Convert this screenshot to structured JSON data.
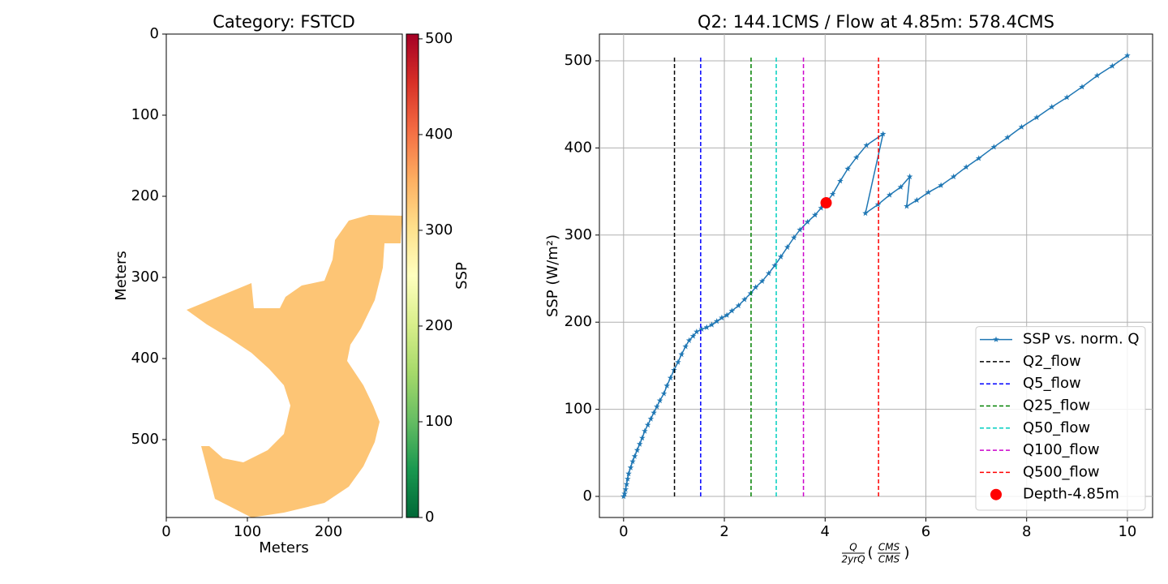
{
  "chart_data": [
    {
      "type": "heatmap",
      "title": "Category: FSTCD",
      "xlabel": "Meters",
      "ylabel": "Meters",
      "xlim": [
        0,
        291
      ],
      "ylim": [
        0,
        596
      ],
      "y_inverted": true,
      "xticks": [
        0,
        100,
        200
      ],
      "yticks": [
        0,
        100,
        200,
        300,
        400,
        500
      ],
      "cmap": "RdYlGn_r",
      "fill_value": 330,
      "colorbar": {
        "label": "SSP",
        "lim": [
          0,
          505
        ],
        "ticks": [
          0,
          100,
          200,
          300,
          400,
          500
        ]
      }
    },
    {
      "type": "line",
      "title": "Q2: 144.1CMS / Flow at 4.85m: 578.4CMS",
      "xlabel": {
        "numerator": "Q",
        "denominator": "2yrQ",
        "unit_numerator": "CMS",
        "unit_denominator": "CMS"
      },
      "ylabel": "SSP (W/m²)",
      "xlim": [
        -0.48,
        10.5
      ],
      "ylim": [
        -24.2,
        530.7
      ],
      "xticks": [
        0,
        2,
        4,
        6,
        8,
        10
      ],
      "yticks": [
        0,
        100,
        200,
        300,
        400,
        500
      ],
      "grid": true,
      "legend": "lower right",
      "x": [
        0,
        0.02,
        0.04,
        0.06,
        0.08,
        0.1,
        0.14,
        0.18,
        0.22,
        0.27,
        0.32,
        0.37,
        0.42,
        0.48,
        0.54,
        0.6,
        0.66,
        0.72,
        0.8,
        0.86,
        0.93,
        1.0,
        1.08,
        1.15,
        1.23,
        1.3,
        1.38,
        1.45,
        1.55,
        1.65,
        1.75,
        1.85,
        1.95,
        2.05,
        2.15,
        2.28,
        2.4,
        2.52,
        2.62,
        2.75,
        2.88,
        3.0,
        3.12,
        3.25,
        3.38,
        3.5,
        3.65,
        3.8,
        3.92,
        4.02,
        4.15,
        4.3,
        4.45,
        4.62,
        4.82,
        5.15,
        4.8,
        5.05,
        5.28,
        5.5,
        5.68,
        5.62,
        5.82,
        6.05,
        6.3,
        6.55,
        6.8,
        7.05,
        7.35,
        7.62,
        7.9,
        8.2,
        8.5,
        8.8,
        9.1,
        9.4,
        9.7,
        10.0
      ],
      "series": [
        {
          "name": "SSP vs. norm. Q",
          "color": "#1f77b4",
          "values": [
            0,
            3,
            8,
            14,
            20,
            26,
            33,
            40,
            46,
            53,
            60,
            67,
            75,
            82,
            89,
            96,
            103,
            110,
            118,
            127,
            136,
            145,
            154,
            163,
            172,
            179,
            184,
            189,
            192,
            194,
            197,
            201,
            205,
            208,
            213,
            219,
            226,
            233,
            240,
            247,
            256,
            265,
            275,
            286,
            297,
            306,
            315,
            323,
            331,
            337,
            347,
            362,
            376,
            389,
            403,
            416,
            325,
            335,
            346,
            355,
            367,
            333,
            340,
            349,
            357,
            367,
            378,
            388,
            401,
            412,
            424,
            435,
            447,
            458,
            470,
            483,
            494,
            506
          ]
        }
      ],
      "vlines": [
        {
          "name": "Q2_flow",
          "x": 1.01,
          "y": [
            0,
            506
          ],
          "color": "#000000"
        },
        {
          "name": "Q5_flow",
          "x": 1.53,
          "y": [
            0,
            506
          ],
          "color": "#0000ff"
        },
        {
          "name": "Q25_flow",
          "x": 2.53,
          "y": [
            0,
            506
          ],
          "color": "#008000"
        },
        {
          "name": "Q50_flow",
          "x": 3.03,
          "y": [
            0,
            506
          ],
          "color": "#00cfc0"
        },
        {
          "name": "Q100_flow",
          "x": 3.57,
          "y": [
            0,
            506
          ],
          "color": "#cc00cc"
        },
        {
          "name": "Q500_flow",
          "x": 5.06,
          "y": [
            0,
            506
          ],
          "color": "#ff0000"
        }
      ],
      "point": {
        "name": "Depth-4.85m",
        "x": 4.02,
        "y": 337,
        "color": "#ff0000"
      }
    }
  ]
}
